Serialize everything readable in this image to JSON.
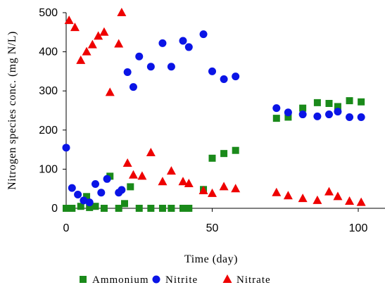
{
  "chart_data": {
    "type": "scatter",
    "xlabel": "Time (day)",
    "ylabel": "Nitrogen species conc. (mg N/L)",
    "xlim": [
      0,
      110
    ],
    "ylim": [
      0,
      500
    ],
    "xticks": [
      0,
      50,
      100
    ],
    "yticks": [
      0,
      100,
      200,
      300,
      400,
      500
    ],
    "grid": false,
    "legend_position": "bottom",
    "series": [
      {
        "name": "Ammonium",
        "marker": "square",
        "color": "#1a8a1a",
        "x": [
          0,
          2,
          5,
          7,
          8,
          10,
          13,
          15,
          18,
          20,
          22,
          25,
          29,
          33,
          36,
          40,
          42,
          47,
          50,
          54,
          58,
          72,
          76,
          81,
          86,
          90,
          93,
          97,
          101
        ],
        "y": [
          0,
          0,
          5,
          30,
          2,
          5,
          0,
          82,
          0,
          12,
          55,
          0,
          0,
          0,
          0,
          0,
          0,
          48,
          128,
          140,
          148,
          230,
          233,
          256,
          270,
          268,
          260,
          275,
          272
        ]
      },
      {
        "name": "Nitrite",
        "marker": "circle",
        "color": "#0a14e6",
        "x": [
          0,
          2,
          4,
          6,
          8,
          10,
          12,
          14,
          18,
          19,
          21,
          23,
          25,
          29,
          33,
          36,
          40,
          42,
          47,
          50,
          54,
          58,
          72,
          76,
          81,
          86,
          90,
          93,
          97,
          101
        ],
        "y": [
          155,
          52,
          35,
          20,
          15,
          62,
          40,
          75,
          40,
          47,
          348,
          310,
          388,
          362,
          422,
          362,
          428,
          412,
          445,
          350,
          330,
          337,
          256,
          245,
          240,
          235,
          240,
          247,
          233,
          233
        ]
      },
      {
        "name": "Nitrate",
        "marker": "triangle",
        "color": "#ee0000",
        "x": [
          1,
          3,
          5,
          7,
          9,
          11,
          13,
          15,
          18,
          19,
          21,
          23,
          26,
          29,
          33,
          36,
          40,
          42,
          47,
          50,
          54,
          58,
          72,
          76,
          81,
          86,
          90,
          93,
          97,
          101
        ],
        "y": [
          480,
          462,
          378,
          400,
          418,
          440,
          450,
          296,
          420,
          500,
          115,
          85,
          82,
          142,
          68,
          95,
          68,
          63,
          45,
          38,
          55,
          50,
          40,
          32,
          25,
          20,
          42,
          30,
          18,
          15
        ]
      }
    ]
  }
}
